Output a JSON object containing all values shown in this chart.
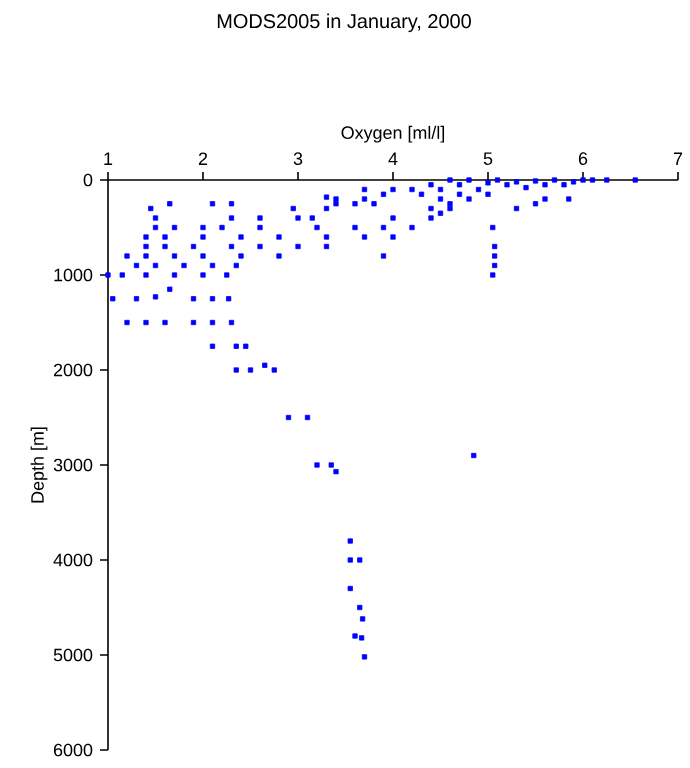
{
  "chart_data": {
    "type": "scatter",
    "title": "MODS2005 in January, 2000",
    "xlabel": "Oxygen [ml/l]",
    "ylabel": "Depth [m]",
    "color": "#0000ff",
    "marker": "square",
    "xlim": [
      1,
      7
    ],
    "ylim": [
      6000,
      0
    ],
    "xticks": [
      1,
      2,
      3,
      4,
      5,
      6,
      7
    ],
    "yticks": [
      0,
      1000,
      2000,
      3000,
      4000,
      5000,
      6000
    ],
    "x": [
      4.4,
      4.5,
      4.6,
      4.7,
      4.8,
      4.9,
      5.0,
      5.1,
      5.2,
      5.3,
      5.4,
      5.5,
      5.6,
      5.7,
      5.8,
      5.9,
      6.0,
      6.1,
      6.25,
      6.55,
      4.5,
      4.6,
      4.7,
      4.8,
      4.4,
      4.5,
      4.6,
      4.3,
      4.2,
      4.0,
      3.9,
      3.7,
      3.8,
      3.7,
      3.6,
      3.4,
      3.3,
      3.4,
      3.3,
      5.0,
      5.6,
      5.5,
      5.85,
      5.3,
      5.05,
      5.07,
      5.07,
      5.07,
      5.05,
      1.45,
      1.65,
      2.1,
      2.3,
      2.95,
      1.5,
      2.3,
      2.6,
      3.0,
      3.15,
      4.0,
      4.4,
      1.5,
      1.7,
      2.0,
      2.2,
      2.6,
      3.2,
      3.6,
      3.9,
      4.2,
      1.4,
      1.6,
      2.0,
      2.4,
      2.8,
      3.3,
      3.7,
      4.0,
      1.4,
      1.6,
      1.9,
      2.3,
      2.6,
      3.0,
      3.3,
      1.2,
      1.4,
      1.7,
      2.0,
      2.4,
      2.8,
      3.9,
      1.3,
      1.5,
      1.8,
      2.1,
      2.35,
      1.0,
      1.15,
      1.4,
      1.7,
      2.0,
      2.25,
      1.05,
      1.3,
      1.5,
      1.65,
      1.9,
      2.1,
      2.27,
      1.2,
      1.4,
      1.6,
      1.9,
      2.1,
      2.3,
      2.1,
      2.35,
      2.45,
      2.35,
      2.5,
      2.65,
      2.75,
      2.9,
      3.1,
      4.85,
      3.2,
      3.35,
      3.4,
      3.55,
      3.55,
      3.65,
      3.55,
      3.65,
      3.68,
      3.6,
      3.67,
      3.7
    ],
    "values": [
      50,
      100,
      0,
      50,
      0,
      100,
      30,
      0,
      50,
      20,
      80,
      10,
      50,
      0,
      50,
      20,
      0,
      0,
      0,
      0,
      200,
      250,
      150,
      200,
      300,
      350,
      300,
      150,
      100,
      100,
      150,
      100,
      250,
      200,
      250,
      200,
      180,
      250,
      300,
      150,
      200,
      250,
      200,
      300,
      500,
      700,
      800,
      900,
      1000,
      300,
      250,
      250,
      250,
      300,
      400,
      400,
      400,
      400,
      400,
      400,
      400,
      500,
      500,
      500,
      500,
      500,
      500,
      500,
      500,
      500,
      600,
      600,
      600,
      600,
      600,
      600,
      600,
      600,
      700,
      700,
      700,
      700,
      700,
      700,
      700,
      800,
      800,
      800,
      800,
      800,
      800,
      800,
      900,
      900,
      900,
      900,
      900,
      1000,
      1000,
      1000,
      1000,
      1000,
      1000,
      1250,
      1250,
      1230,
      1150,
      1250,
      1250,
      1250,
      1500,
      1500,
      1500,
      1500,
      1500,
      1500,
      1750,
      1750,
      1750,
      2000,
      2000,
      1950,
      2000,
      2500,
      2500,
      2900,
      3000,
      3000,
      3070,
      3800,
      4000,
      4000,
      4300,
      4500,
      4620,
      4800,
      4820,
      5020
    ]
  }
}
